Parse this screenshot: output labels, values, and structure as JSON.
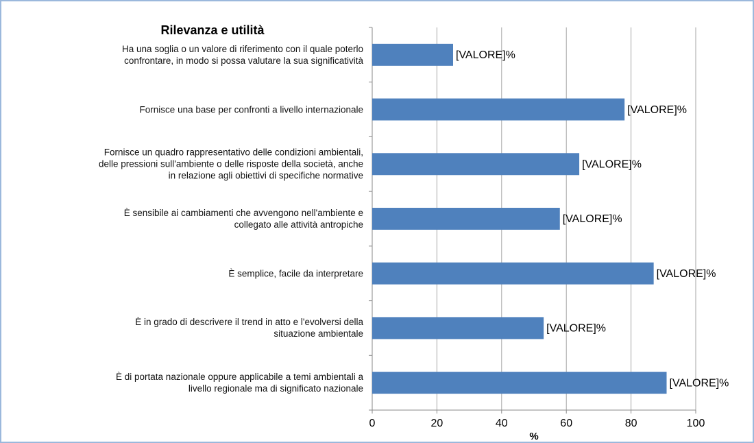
{
  "chart_data": {
    "type": "hbar",
    "title": "Rilevanza e utilità",
    "x_label": "%",
    "categories": [
      "Ha una soglia o un valore di riferimento con il quale poterlo\nconfrontare, in modo si possa valutare la sua significatività",
      "Fornisce una base per confronti a livello internazionale",
      "Fornisce un quadro rappresentativo delle condizioni ambientali,\ndelle pressioni sull'ambiente o delle risposte della società, anche\nin relazione agli obiettivi di specifiche normative",
      "È sensibile ai cambiamenti che avvengono nell'ambiente e\ncollegato alle attività antropiche",
      "È semplice, facile da interpretare",
      "È in grado di descrivere il trend in atto e l'evolversi della\nsituazione ambientale",
      "È di portata nazionale oppure applicabile a temi ambientali a\nlivello regionale ma di significato nazionale"
    ],
    "values": [
      25,
      78,
      64,
      58,
      87,
      53,
      91
    ],
    "value_labels": [
      "[VALORE]%",
      "[VALORE]%",
      "[VALORE]%",
      "[VALORE]%",
      "[VALORE]%",
      "[VALORE]%",
      "[VALORE]%"
    ],
    "color": "#4f81bd",
    "xlim": [
      0,
      100
    ],
    "xticks": [
      0,
      20,
      40,
      60,
      80,
      100
    ],
    "grid": true
  }
}
